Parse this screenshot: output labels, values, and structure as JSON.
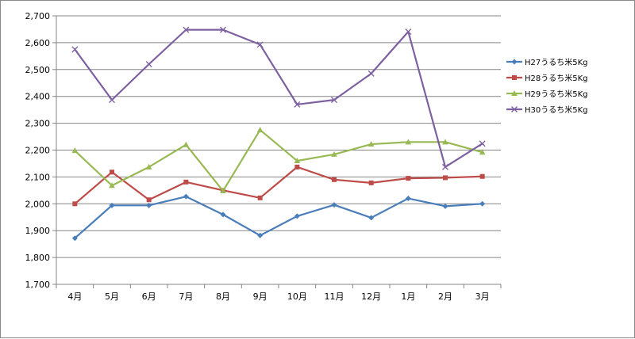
{
  "chart_data": {
    "type": "line",
    "title": "",
    "xlabel": "",
    "ylabel": "",
    "categories": [
      "4月",
      "5月",
      "6月",
      "7月",
      "8月",
      "9月",
      "10月",
      "11月",
      "12月",
      "1月",
      "2月",
      "3月"
    ],
    "ylim": [
      1700,
      2700
    ],
    "yticks": [
      "1,700",
      "1,800",
      "1,900",
      "2,000",
      "2,100",
      "2,200",
      "2,300",
      "2,400",
      "2,500",
      "2,600",
      "2,700"
    ],
    "grid": true,
    "legend_position": "right",
    "series": [
      {
        "name": "H27うるち米5Kg",
        "color": "#4a7ebb",
        "marker": "diamond",
        "values": [
          1872,
          1994,
          1994,
          2027,
          1960,
          1882,
          1954,
          1996,
          1948,
          2020,
          1991,
          2000
        ]
      },
      {
        "name": "H28うるち米5Kg",
        "color": "#be4b48",
        "marker": "square",
        "values": [
          2000,
          2118,
          2015,
          2081,
          2050,
          2022,
          2137,
          2090,
          2078,
          2095,
          2097,
          2102
        ]
      },
      {
        "name": "H29うるち米5Kg",
        "color": "#98b954",
        "marker": "triangle",
        "values": [
          2198,
          2068,
          2137,
          2220,
          2048,
          2275,
          2160,
          2184,
          2222,
          2230,
          2230,
          2192
        ]
      },
      {
        "name": "H30うるち米5Kg",
        "color": "#7d60a0",
        "marker": "x",
        "values": [
          2575,
          2387,
          2520,
          2648,
          2648,
          2593,
          2370,
          2387,
          2485,
          2641,
          2137,
          2224
        ]
      }
    ]
  }
}
